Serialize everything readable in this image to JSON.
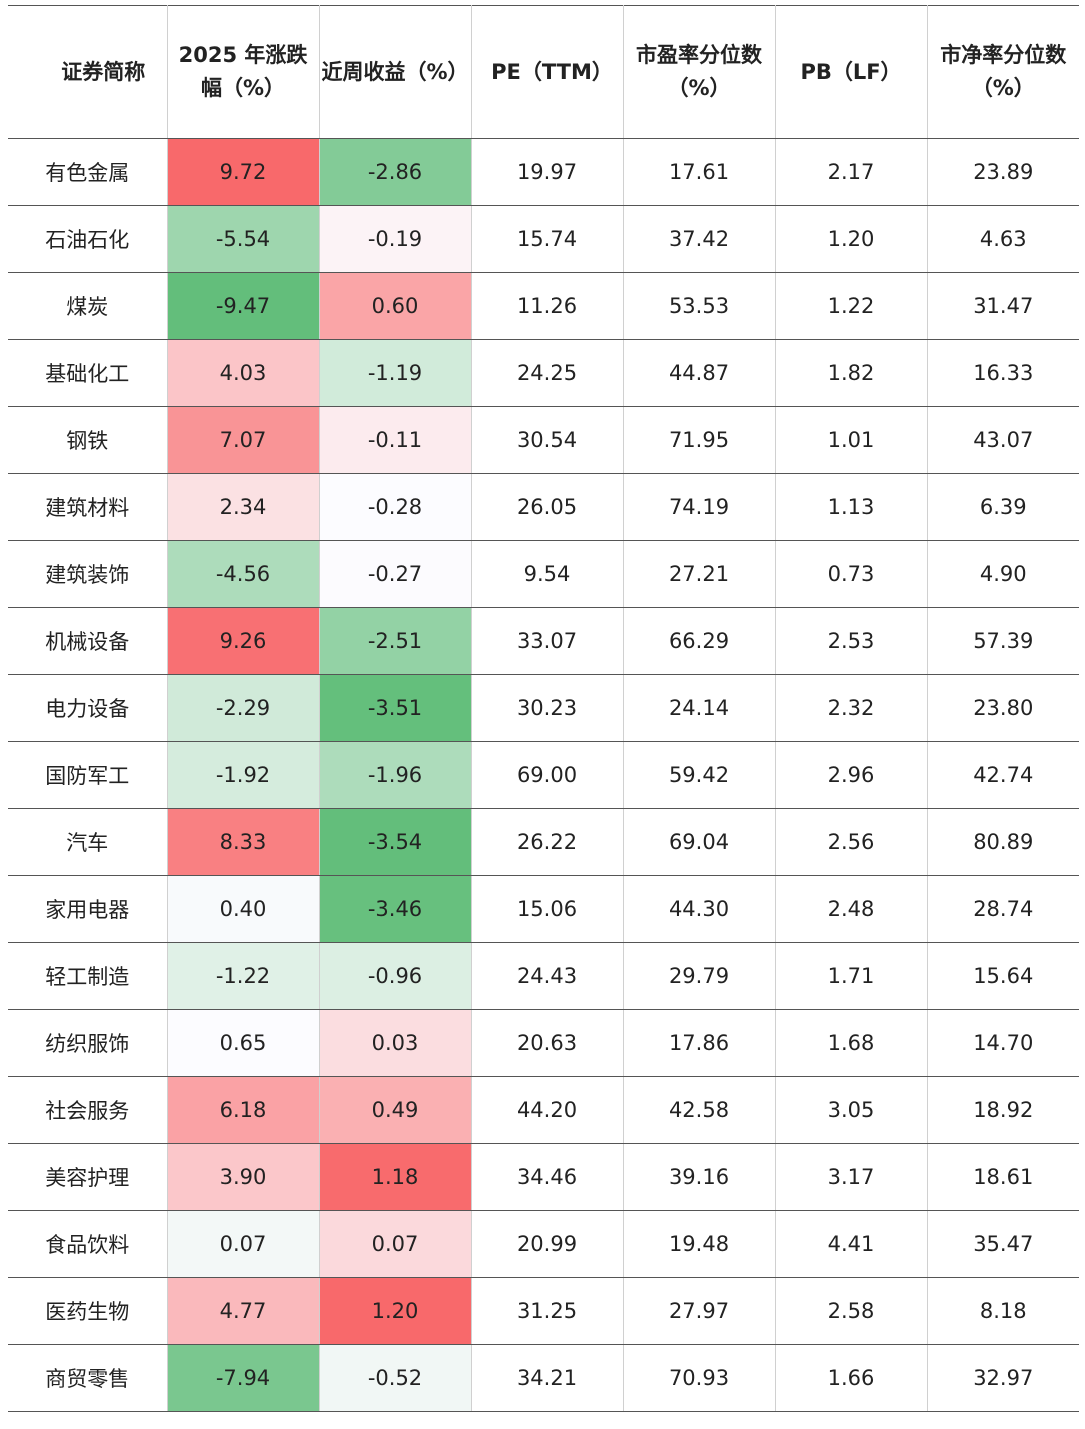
{
  "table": {
    "headers": [
      {
        "label": "证券简称",
        "align": "center"
      },
      {
        "label": "2025 年涨跌幅（%）"
      },
      {
        "label": "近周收益（%）"
      },
      {
        "label": "PE（TTM）"
      },
      {
        "label": "市盈率分位数（%）"
      },
      {
        "label": "PB（LF）"
      },
      {
        "label": "市净率分位数（%）"
      }
    ],
    "heat_colors": {
      "strong_red": "#f8696b",
      "white": "#fcfcff",
      "strong_green": "#63be7b"
    },
    "rows": [
      {
        "name": "有色金属",
        "ytd": "9.72",
        "week": "-2.86",
        "pe": "19.97",
        "pe_pct": "17.61",
        "pb": "2.17",
        "pb_pct": "23.89"
      },
      {
        "name": "石油石化",
        "ytd": "-5.54",
        "week": "-0.19",
        "pe": "15.74",
        "pe_pct": "37.42",
        "pb": "1.20",
        "pb_pct": "4.63"
      },
      {
        "name": "煤炭",
        "ytd": "-9.47",
        "week": "0.60",
        "pe": "11.26",
        "pe_pct": "53.53",
        "pb": "1.22",
        "pb_pct": "31.47"
      },
      {
        "name": "基础化工",
        "ytd": "4.03",
        "week": "-1.19",
        "pe": "24.25",
        "pe_pct": "44.87",
        "pb": "1.82",
        "pb_pct": "16.33"
      },
      {
        "name": "钢铁",
        "ytd": "7.07",
        "week": "-0.11",
        "pe": "30.54",
        "pe_pct": "71.95",
        "pb": "1.01",
        "pb_pct": "43.07"
      },
      {
        "name": "建筑材料",
        "ytd": "2.34",
        "week": "-0.28",
        "pe": "26.05",
        "pe_pct": "74.19",
        "pb": "1.13",
        "pb_pct": "6.39"
      },
      {
        "name": "建筑装饰",
        "ytd": "-4.56",
        "week": "-0.27",
        "pe": "9.54",
        "pe_pct": "27.21",
        "pb": "0.73",
        "pb_pct": "4.90"
      },
      {
        "name": "机械设备",
        "ytd": "9.26",
        "week": "-2.51",
        "pe": "33.07",
        "pe_pct": "66.29",
        "pb": "2.53",
        "pb_pct": "57.39"
      },
      {
        "name": "电力设备",
        "ytd": "-2.29",
        "week": "-3.51",
        "pe": "30.23",
        "pe_pct": "24.14",
        "pb": "2.32",
        "pb_pct": "23.80"
      },
      {
        "name": "国防军工",
        "ytd": "-1.92",
        "week": "-1.96",
        "pe": "69.00",
        "pe_pct": "59.42",
        "pb": "2.96",
        "pb_pct": "42.74"
      },
      {
        "name": "汽车",
        "ytd": "8.33",
        "week": "-3.54",
        "pe": "26.22",
        "pe_pct": "69.04",
        "pb": "2.56",
        "pb_pct": "80.89"
      },
      {
        "name": "家用电器",
        "ytd": "0.40",
        "week": "-3.46",
        "pe": "15.06",
        "pe_pct": "44.30",
        "pb": "2.48",
        "pb_pct": "28.74"
      },
      {
        "name": "轻工制造",
        "ytd": "-1.22",
        "week": "-0.96",
        "pe": "24.43",
        "pe_pct": "29.79",
        "pb": "1.71",
        "pb_pct": "15.64"
      },
      {
        "name": "纺织服饰",
        "ytd": "0.65",
        "week": "0.03",
        "pe": "20.63",
        "pe_pct": "17.86",
        "pb": "1.68",
        "pb_pct": "14.70"
      },
      {
        "name": "社会服务",
        "ytd": "6.18",
        "week": "0.49",
        "pe": "44.20",
        "pe_pct": "42.58",
        "pb": "3.05",
        "pb_pct": "18.92"
      },
      {
        "name": "美容护理",
        "ytd": "3.90",
        "week": "1.18",
        "pe": "34.46",
        "pe_pct": "39.16",
        "pb": "3.17",
        "pb_pct": "18.61"
      },
      {
        "name": "食品饮料",
        "ytd": "0.07",
        "week": "0.07",
        "pe": "20.99",
        "pe_pct": "19.48",
        "pb": "4.41",
        "pb_pct": "35.47"
      },
      {
        "name": "医药生物",
        "ytd": "4.77",
        "week": "1.20",
        "pe": "31.25",
        "pe_pct": "27.97",
        "pb": "2.58",
        "pb_pct": "8.18"
      },
      {
        "name": "商贸零售",
        "ytd": "-7.94",
        "week": "-0.52",
        "pe": "34.21",
        "pe_pct": "70.93",
        "pb": "1.66",
        "pb_pct": "32.97"
      }
    ]
  }
}
